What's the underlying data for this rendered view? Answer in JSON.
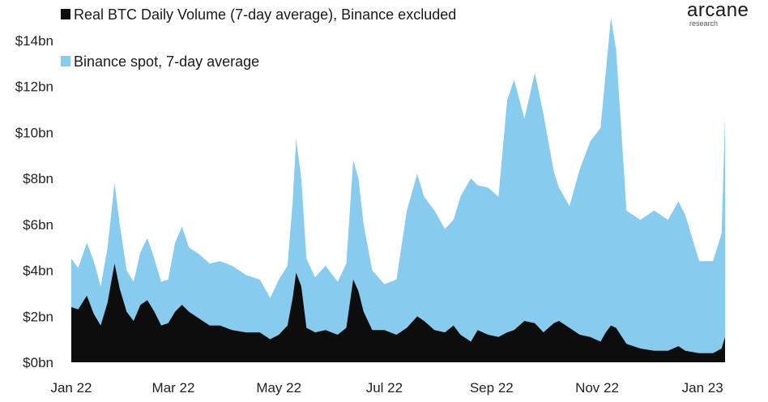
{
  "branding": {
    "logo_text": "arcane",
    "logo_subtext": "research"
  },
  "chart_data": {
    "type": "area",
    "stacked": true,
    "x_labels": [
      "Jan 22",
      "Mar 22",
      "May 22",
      "Jul 22",
      "Sep 22",
      "Nov 22",
      "Jan 23"
    ],
    "y_ticks": [
      "$0bn",
      "$2bn",
      "$4bn",
      "$6bn",
      "$8bn",
      "$10bn",
      "$12bn",
      "$14bn"
    ],
    "ylim": [
      0,
      14
    ],
    "y_unit": "$bn",
    "grid": false,
    "legend_position": "top-left",
    "colors": {
      "real_volume": "#0d0d0d",
      "binance_spot": "#87ccee"
    },
    "series": [
      {
        "name": "Real BTC Daily Volume (7-day average), Binance excluded",
        "key": "real_volume",
        "points": [
          [
            "2022-01-01",
            2.4
          ],
          [
            "2022-01-05",
            2.3
          ],
          [
            "2022-01-10",
            2.9
          ],
          [
            "2022-01-14",
            2.1
          ],
          [
            "2022-01-18",
            1.6
          ],
          [
            "2022-01-22",
            2.6
          ],
          [
            "2022-01-26",
            4.3
          ],
          [
            "2022-01-29",
            3.2
          ],
          [
            "2022-02-02",
            2.2
          ],
          [
            "2022-02-06",
            1.8
          ],
          [
            "2022-02-10",
            2.5
          ],
          [
            "2022-02-14",
            2.7
          ],
          [
            "2022-02-18",
            2.2
          ],
          [
            "2022-02-22",
            1.6
          ],
          [
            "2022-02-26",
            1.7
          ],
          [
            "2022-03-02",
            2.2
          ],
          [
            "2022-03-06",
            2.5
          ],
          [
            "2022-03-10",
            2.2
          ],
          [
            "2022-03-16",
            1.9
          ],
          [
            "2022-03-22",
            1.6
          ],
          [
            "2022-03-28",
            1.6
          ],
          [
            "2022-04-04",
            1.4
          ],
          [
            "2022-04-12",
            1.3
          ],
          [
            "2022-04-20",
            1.3
          ],
          [
            "2022-04-26",
            1.0
          ],
          [
            "2022-05-01",
            1.2
          ],
          [
            "2022-05-06",
            1.6
          ],
          [
            "2022-05-09",
            2.8
          ],
          [
            "2022-05-11",
            3.9
          ],
          [
            "2022-05-14",
            3.3
          ],
          [
            "2022-05-17",
            1.5
          ],
          [
            "2022-05-22",
            1.3
          ],
          [
            "2022-05-28",
            1.4
          ],
          [
            "2022-06-04",
            1.2
          ],
          [
            "2022-06-09",
            1.5
          ],
          [
            "2022-06-13",
            3.6
          ],
          [
            "2022-06-16",
            3.1
          ],
          [
            "2022-06-19",
            2.2
          ],
          [
            "2022-06-24",
            1.4
          ],
          [
            "2022-07-01",
            1.4
          ],
          [
            "2022-07-08",
            1.2
          ],
          [
            "2022-07-14",
            1.5
          ],
          [
            "2022-07-20",
            2.0
          ],
          [
            "2022-07-24",
            1.8
          ],
          [
            "2022-07-30",
            1.4
          ],
          [
            "2022-08-05",
            1.3
          ],
          [
            "2022-08-10",
            1.6
          ],
          [
            "2022-08-14",
            1.2
          ],
          [
            "2022-08-20",
            0.9
          ],
          [
            "2022-08-24",
            1.4
          ],
          [
            "2022-08-30",
            1.2
          ],
          [
            "2022-09-05",
            1.1
          ],
          [
            "2022-09-10",
            1.3
          ],
          [
            "2022-09-14",
            1.4
          ],
          [
            "2022-09-20",
            1.8
          ],
          [
            "2022-09-26",
            1.7
          ],
          [
            "2022-10-01",
            1.3
          ],
          [
            "2022-10-07",
            1.7
          ],
          [
            "2022-10-10",
            1.8
          ],
          [
            "2022-10-16",
            1.5
          ],
          [
            "2022-10-22",
            1.2
          ],
          [
            "2022-10-28",
            1.1
          ],
          [
            "2022-11-03",
            0.9
          ],
          [
            "2022-11-06",
            1.3
          ],
          [
            "2022-11-09",
            1.6
          ],
          [
            "2022-11-12",
            1.5
          ],
          [
            "2022-11-18",
            0.8
          ],
          [
            "2022-11-26",
            0.6
          ],
          [
            "2022-12-04",
            0.5
          ],
          [
            "2022-12-12",
            0.5
          ],
          [
            "2022-12-18",
            0.7
          ],
          [
            "2022-12-22",
            0.5
          ],
          [
            "2022-12-30",
            0.4
          ],
          [
            "2023-01-07",
            0.4
          ],
          [
            "2023-01-12",
            0.6
          ],
          [
            "2023-01-14",
            1.1
          ]
        ]
      },
      {
        "name": "Binance spot, 7-day average",
        "key": "binance_spot",
        "points": [
          [
            "2022-01-01",
            4.5
          ],
          [
            "2022-01-05",
            4.1
          ],
          [
            "2022-01-10",
            5.2
          ],
          [
            "2022-01-14",
            4.4
          ],
          [
            "2022-01-18",
            3.3
          ],
          [
            "2022-01-22",
            5.0
          ],
          [
            "2022-01-26",
            7.8
          ],
          [
            "2022-01-29",
            6.0
          ],
          [
            "2022-02-02",
            4.0
          ],
          [
            "2022-02-06",
            3.5
          ],
          [
            "2022-02-10",
            4.8
          ],
          [
            "2022-02-14",
            5.4
          ],
          [
            "2022-02-18",
            4.5
          ],
          [
            "2022-02-22",
            3.5
          ],
          [
            "2022-02-26",
            3.6
          ],
          [
            "2022-03-02",
            5.2
          ],
          [
            "2022-03-06",
            5.9
          ],
          [
            "2022-03-10",
            5.0
          ],
          [
            "2022-03-16",
            4.7
          ],
          [
            "2022-03-22",
            4.3
          ],
          [
            "2022-03-28",
            4.4
          ],
          [
            "2022-04-04",
            4.2
          ],
          [
            "2022-04-12",
            3.8
          ],
          [
            "2022-04-20",
            3.6
          ],
          [
            "2022-04-26",
            2.8
          ],
          [
            "2022-05-01",
            3.6
          ],
          [
            "2022-05-06",
            4.2
          ],
          [
            "2022-05-09",
            7.0
          ],
          [
            "2022-05-11",
            9.7
          ],
          [
            "2022-05-14",
            8.0
          ],
          [
            "2022-05-17",
            4.5
          ],
          [
            "2022-05-22",
            3.7
          ],
          [
            "2022-05-28",
            4.2
          ],
          [
            "2022-06-04",
            3.5
          ],
          [
            "2022-06-09",
            4.3
          ],
          [
            "2022-06-13",
            8.8
          ],
          [
            "2022-06-16",
            8.0
          ],
          [
            "2022-06-19",
            6.0
          ],
          [
            "2022-06-24",
            4.0
          ],
          [
            "2022-07-01",
            3.4
          ],
          [
            "2022-07-08",
            3.6
          ],
          [
            "2022-07-14",
            6.6
          ],
          [
            "2022-07-20",
            8.2
          ],
          [
            "2022-07-24",
            7.2
          ],
          [
            "2022-07-30",
            6.6
          ],
          [
            "2022-08-05",
            5.8
          ],
          [
            "2022-08-10",
            6.2
          ],
          [
            "2022-08-14",
            7.2
          ],
          [
            "2022-08-20",
            8.0
          ],
          [
            "2022-08-24",
            7.7
          ],
          [
            "2022-08-30",
            7.6
          ],
          [
            "2022-09-05",
            7.2
          ],
          [
            "2022-09-10",
            11.4
          ],
          [
            "2022-09-14",
            12.3
          ],
          [
            "2022-09-20",
            10.6
          ],
          [
            "2022-09-26",
            12.6
          ],
          [
            "2022-10-01",
            10.8
          ],
          [
            "2022-10-07",
            8.3
          ],
          [
            "2022-10-10",
            7.6
          ],
          [
            "2022-10-16",
            6.8
          ],
          [
            "2022-10-22",
            8.4
          ],
          [
            "2022-10-28",
            9.6
          ],
          [
            "2022-11-03",
            10.2
          ],
          [
            "2022-11-06",
            12.6
          ],
          [
            "2022-11-09",
            15.0
          ],
          [
            "2022-11-12",
            13.6
          ],
          [
            "2022-11-18",
            6.6
          ],
          [
            "2022-11-26",
            6.2
          ],
          [
            "2022-12-04",
            6.6
          ],
          [
            "2022-12-12",
            6.2
          ],
          [
            "2022-12-18",
            7.0
          ],
          [
            "2022-12-22",
            6.4
          ],
          [
            "2022-12-30",
            4.4
          ],
          [
            "2023-01-07",
            4.4
          ],
          [
            "2023-01-12",
            5.6
          ],
          [
            "2023-01-14",
            10.7
          ]
        ]
      }
    ]
  }
}
